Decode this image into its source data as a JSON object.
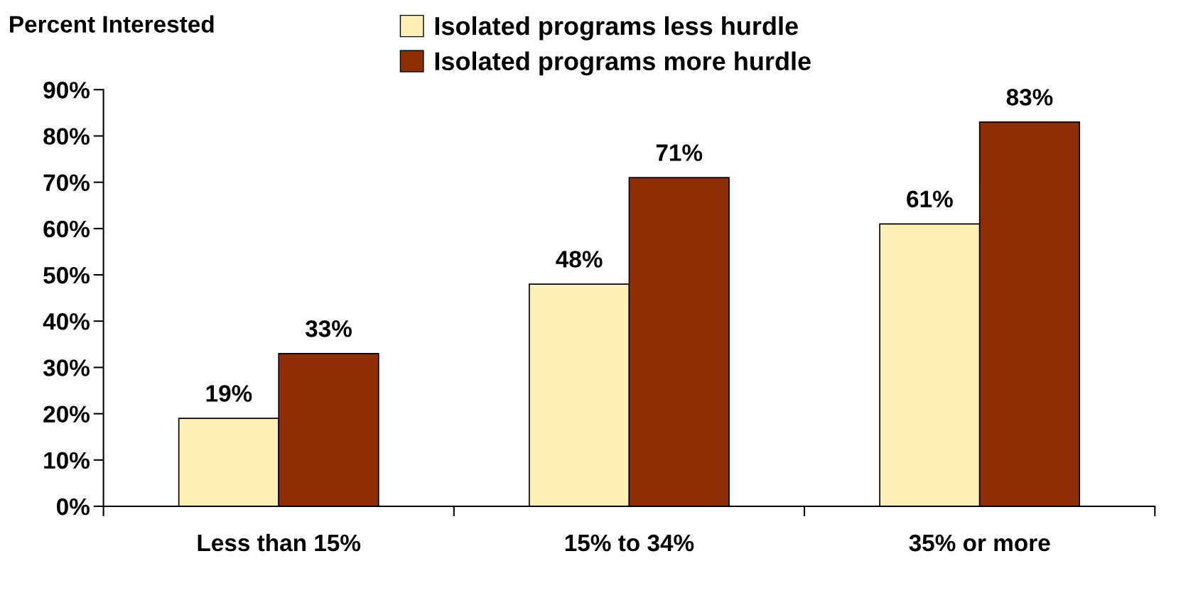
{
  "chart_data": {
    "type": "bar",
    "ylabel": "Percent Interested",
    "categories": [
      "Less than 15%",
      "15% to 34%",
      "35% or more"
    ],
    "series": [
      {
        "name": "Isolated programs less hurdle",
        "color": "#fdf0b4",
        "values": [
          19,
          48,
          61
        ],
        "value_labels": [
          "19%",
          "48%",
          "61%"
        ]
      },
      {
        "name": "Isolated programs more hurdle",
        "color": "#8f2e05",
        "values": [
          33,
          71,
          83
        ],
        "value_labels": [
          "33%",
          "71%",
          "83%"
        ]
      }
    ],
    "ylim": [
      0,
      90
    ],
    "yticks": [
      {
        "value": 0,
        "label": "0%"
      },
      {
        "value": 10,
        "label": "10%"
      },
      {
        "value": 20,
        "label": "20%"
      },
      {
        "value": 30,
        "label": "30%"
      },
      {
        "value": 40,
        "label": "40%"
      },
      {
        "value": 50,
        "label": "50%"
      },
      {
        "value": 60,
        "label": "60%"
      },
      {
        "value": 70,
        "label": "70%"
      },
      {
        "value": 80,
        "label": "80%"
      },
      {
        "value": 90,
        "label": "90%"
      }
    ],
    "grid": false,
    "legend": "top"
  }
}
